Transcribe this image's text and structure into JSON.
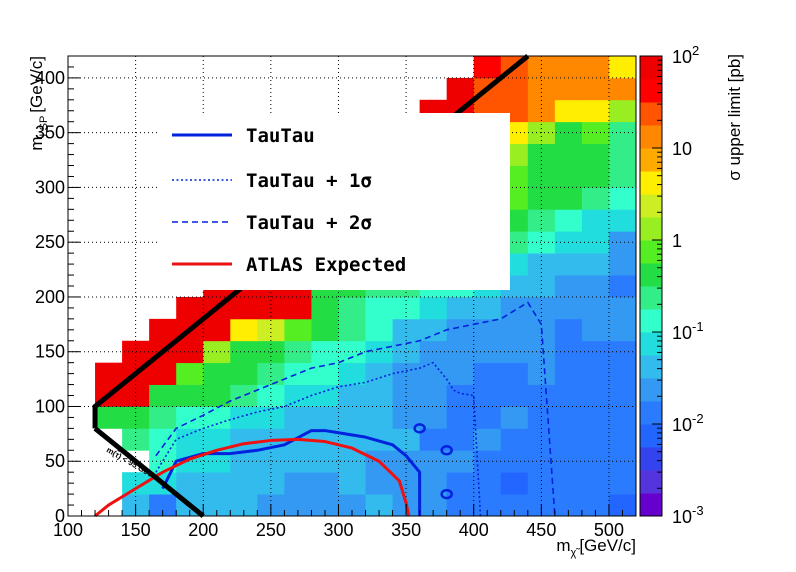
{
  "chart_data": {
    "type": "heatmap",
    "xlabel": "m",
    "xlabel_sub": "χ̃",
    "xlabel_unit": "[GeV/c]",
    "ylabel": "m",
    "ylabel_sub": "LSP",
    "ylabel_unit": "[GeV/c]",
    "colorbar_label": "σ upper limit [pb]",
    "colorbar_scale": "log",
    "xlim": [
      100,
      520
    ],
    "ylim": [
      0,
      420
    ],
    "cbar_range": [
      0.001,
      100
    ],
    "x_ticks": [
      "100",
      "150",
      "200",
      "250",
      "300",
      "350",
      "400",
      "450",
      "500"
    ],
    "y_ticks": [
      "0",
      "50",
      "100",
      "150",
      "200",
      "250",
      "300",
      "350",
      "400"
    ],
    "cbar_ticks": [
      {
        "value": 100,
        "base": "10",
        "exp": "2"
      },
      {
        "value": 10,
        "base": "10",
        "exp": ""
      },
      {
        "value": 1,
        "base": "1",
        "exp": ""
      },
      {
        "value": 0.1,
        "base": "10",
        "exp": "-1"
      },
      {
        "value": 0.01,
        "base": "10",
        "exp": "-2"
      },
      {
        "value": 0.001,
        "base": "10",
        "exp": "-3"
      }
    ],
    "grid": true,
    "cell_width": 20,
    "cell_height": 20,
    "colors": [
      "#6600cc",
      "#5533dd",
      "#3344ee",
      "#2266ff",
      "#2b7bff",
      "#3399f2",
      "#33bbee",
      "#22dddd",
      "#33ffcc",
      "#33ee88",
      "#22dd44",
      "#55ee22",
      "#99ee22",
      "#ccee22",
      "#ffee00",
      "#ffaa00",
      "#ff8800",
      "#ff5500",
      "#ff0000",
      "#ee0000"
    ],
    "grid_values": [
      [
        null,
        null,
        -1.3,
        -1.8,
        -1.4,
        -1.4,
        -1.5,
        -1.6,
        -1.7,
        -1.6,
        -1.6,
        -1.5,
        -1.6,
        -1.7,
        -1.8,
        -1.9,
        -1.9,
        -2.0,
        -2.0,
        -2.0,
        -2.1
      ],
      [
        null,
        null,
        -1.1,
        -1.2,
        -1.3,
        -1.4,
        -1.5,
        -1.5,
        -1.6,
        -1.6,
        -1.5,
        -1.6,
        -1.6,
        -1.7,
        -1.8,
        -1.8,
        -2.1,
        -1.9,
        -1.9,
        -2.0,
        -2.0
      ],
      [
        null,
        null,
        null,
        -1.0,
        -1.2,
        -1.2,
        -1.4,
        -1.5,
        -1.5,
        -1.5,
        -1.5,
        -1.6,
        -1.6,
        -1.7,
        -1.7,
        -1.8,
        -1.9,
        -1.9,
        -1.9,
        -2.0,
        -2.0
      ],
      [
        null,
        null,
        -0.6,
        -0.9,
        -1.1,
        -1.1,
        -1.3,
        -1.4,
        -1.5,
        -1.5,
        -1.5,
        -1.5,
        -1.5,
        -1.8,
        -1.8,
        -1.7,
        -1.8,
        -1.8,
        -1.9,
        -1.9,
        -1.9
      ],
      [
        null,
        -0.3,
        -0.4,
        -0.7,
        -0.8,
        -1.0,
        -1.2,
        -1.2,
        -1.4,
        -1.5,
        -1.5,
        -1.5,
        -1.6,
        -1.7,
        -1.8,
        -1.8,
        -1.7,
        -1.8,
        -1.8,
        -1.9,
        -1.8
      ],
      [
        null,
        2.5,
        2.5,
        -0.3,
        -0.4,
        -0.5,
        -0.7,
        -0.8,
        -1.1,
        -1.2,
        -1.3,
        -1.4,
        -1.6,
        -1.7,
        -1.8,
        -1.8,
        -1.8,
        -1.8,
        -1.8,
        -1.9,
        -1.8
      ],
      [
        null,
        2.5,
        2.5,
        2.5,
        -0.1,
        -0.3,
        -0.4,
        -0.6,
        -0.8,
        -1.0,
        -1.1,
        -1.3,
        -1.6,
        -1.7,
        -1.7,
        -1.8,
        -1.8,
        -1.7,
        -1.9,
        -1.8,
        -1.8
      ],
      [
        null,
        null,
        2.5,
        2.5,
        2.5,
        0.2,
        -0.3,
        -0.5,
        -0.7,
        -0.8,
        -0.9,
        -1.2,
        -1.5,
        -1.7,
        -1.7,
        -1.7,
        -1.6,
        -1.7,
        -1.8,
        -1.8,
        -1.8
      ],
      [
        null,
        null,
        null,
        2.5,
        2.5,
        2.5,
        0.5,
        0.4,
        -0.1,
        -0.5,
        -0.7,
        -1.0,
        -1.4,
        -1.5,
        -1.6,
        -1.7,
        -1.6,
        -1.7,
        -1.8,
        -1.7,
        -1.7
      ],
      [
        null,
        null,
        null,
        null,
        2.5,
        2.5,
        2.5,
        2.5,
        2.5,
        -0.4,
        -0.6,
        -0.8,
        -0.9,
        -1.1,
        -1.3,
        -1.5,
        -1.6,
        -1.6,
        -1.6,
        -1.7,
        -1.7
      ],
      [
        null,
        null,
        null,
        null,
        null,
        2.5,
        2.5,
        2.5,
        2.5,
        -0.3,
        -0.5,
        -0.6,
        -0.7,
        -0.8,
        -1.0,
        -1.2,
        -1.4,
        -1.5,
        -1.6,
        -1.6,
        -1.8
      ],
      [
        null,
        null,
        null,
        null,
        null,
        null,
        2.5,
        2.5,
        2.5,
        2.5,
        -0.2,
        -0.3,
        -0.2,
        -0.4,
        -0.6,
        -0.8,
        -1.1,
        -1.3,
        -1.4,
        -1.3,
        -1.6
      ],
      [
        null,
        null,
        null,
        null,
        null,
        null,
        null,
        2.5,
        2.5,
        2.5,
        2.5,
        -0.1,
        -0.2,
        -0.2,
        -0.4,
        -0.5,
        -0.7,
        -1.0,
        -1.2,
        -1.2,
        -1.7
      ],
      [
        null,
        null,
        null,
        null,
        null,
        null,
        null,
        null,
        2.5,
        2.5,
        2.5,
        2.5,
        0.3,
        -0.1,
        -0.2,
        -0.3,
        -0.5,
        -0.6,
        -0.8,
        -1.1,
        -1.1
      ],
      [
        null,
        null,
        null,
        null,
        null,
        null,
        null,
        null,
        null,
        2.5,
        2.5,
        2.5,
        2.5,
        0.2,
        0.0,
        -0.1,
        -0.2,
        -0.3,
        -0.5,
        -0.6,
        -0.8
      ],
      [
        null,
        null,
        null,
        null,
        null,
        null,
        null,
        null,
        null,
        null,
        2.5,
        2.5,
        2.5,
        2.5,
        0.3,
        0.1,
        -0.2,
        -0.3,
        -0.4,
        -0.5,
        -0.6
      ],
      [
        null,
        null,
        null,
        null,
        null,
        null,
        null,
        null,
        null,
        null,
        null,
        2.5,
        2.5,
        2.5,
        2.5,
        0.4,
        0.2,
        -0.3,
        -0.4,
        -0.5,
        -0.6
      ],
      [
        null,
        null,
        null,
        null,
        null,
        null,
        null,
        null,
        null,
        null,
        null,
        null,
        2.5,
        2.5,
        2.5,
        1.0,
        0.5,
        0.1,
        -0.4,
        -0.2,
        -0.6
      ],
      [
        null,
        null,
        null,
        null,
        null,
        null,
        null,
        null,
        null,
        null,
        null,
        null,
        null,
        2.5,
        2.5,
        1.3,
        1.3,
        1.2,
        0.6,
        0.6,
        0.0
      ],
      [
        null,
        null,
        null,
        null,
        null,
        null,
        null,
        null,
        null,
        null,
        null,
        null,
        null,
        null,
        2.5,
        1.3,
        1.3,
        1.2,
        1.1,
        1.1,
        1.0
      ],
      [
        null,
        null,
        null,
        null,
        null,
        null,
        null,
        null,
        null,
        null,
        null,
        null,
        null,
        null,
        null,
        1.5,
        1.3,
        1.2,
        1.2,
        1.2,
        0.5
      ]
    ],
    "kinematic_boundary": {
      "x": [
        120,
        120,
        440
      ],
      "y": [
        80,
        100,
        420
      ]
    },
    "tau_boundary": {
      "x": [
        120,
        200
      ],
      "y": [
        80,
        0
      ]
    },
    "tau_boundary_label": "m(τ̃) < 95 GeV",
    "series": [
      {
        "name": "TauTau",
        "style": "solid",
        "color": "#0022dd",
        "x": [
          170,
          180,
          200,
          220,
          240,
          260,
          280,
          290,
          300,
          320,
          340,
          350,
          360,
          360
        ],
        "y": [
          25,
          50,
          57,
          57,
          60,
          65,
          78,
          78,
          76,
          72,
          65,
          55,
          40,
          0
        ]
      },
      {
        "name": "TauTau + 1σ",
        "style": "dotted",
        "color": "#0022dd",
        "x": [
          165,
          180,
          200,
          220,
          240,
          260,
          280,
          300,
          320,
          340,
          360,
          370,
          380,
          385,
          390,
          400,
          405
        ],
        "y": [
          40,
          70,
          80,
          88,
          95,
          100,
          110,
          118,
          122,
          130,
          135,
          140,
          125,
          115,
          112,
          110,
          0
        ]
      },
      {
        "name": "TauTau + 2σ",
        "style": "dashed",
        "color": "#0022dd",
        "x": [
          165,
          180,
          200,
          220,
          240,
          260,
          280,
          300,
          320,
          340,
          360,
          380,
          400,
          420,
          440,
          450,
          460
        ],
        "y": [
          55,
          80,
          92,
          105,
          115,
          125,
          135,
          140,
          150,
          155,
          160,
          170,
          175,
          180,
          195,
          175,
          0
        ]
      },
      {
        "name": "ATLAS Expected",
        "style": "solid",
        "color": "#ee1111",
        "x": [
          120,
          130,
          150,
          170,
          190,
          210,
          230,
          250,
          270,
          290,
          310,
          330,
          345,
          350,
          352
        ],
        "y": [
          0,
          10,
          25,
          40,
          52,
          60,
          66,
          69,
          70,
          68,
          62,
          50,
          32,
          12,
          0
        ]
      }
    ],
    "legend_placement": "upper-left"
  }
}
